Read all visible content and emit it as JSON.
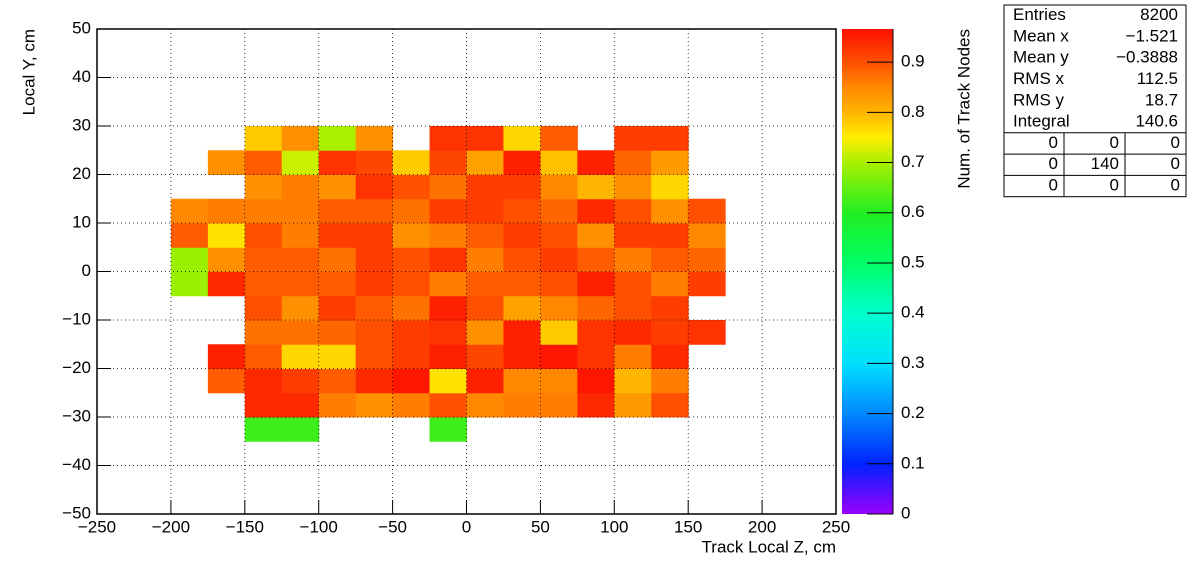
{
  "chart_data": {
    "type": "heatmap",
    "xlabel": "Track Local Z, cm",
    "ylabel": "Local Y, cm",
    "zlabel": "Num. of Track Nodes",
    "xlim": [
      -250,
      250
    ],
    "ylim": [
      -50,
      50
    ],
    "zlim": [
      0,
      0.966
    ],
    "xticks": [
      {
        "value": -250,
        "label": "−250"
      },
      {
        "value": -200,
        "label": "−200"
      },
      {
        "value": -150,
        "label": "−150"
      },
      {
        "value": -100,
        "label": "−100"
      },
      {
        "value": -50,
        "label": "−50"
      },
      0,
      50,
      100,
      150,
      200,
      250
    ],
    "yticks": [
      {
        "value": -50,
        "label": "−50"
      },
      {
        "value": -40,
        "label": "−40"
      },
      {
        "value": -30,
        "label": "−30"
      },
      {
        "value": -20,
        "label": "−20"
      },
      {
        "value": -10,
        "label": "−10"
      },
      0,
      10,
      20,
      30,
      40,
      50
    ],
    "zticks": [
      0,
      0.1,
      0.2,
      0.3,
      0.4,
      0.5,
      0.6,
      0.7,
      0.8,
      0.9
    ],
    "grid": true,
    "colorscale": [
      [
        0,
        "#9900ff"
      ],
      [
        0.1,
        "#0022ff"
      ],
      [
        0.2,
        "#0088ff"
      ],
      [
        0.3,
        "#00e0ff"
      ],
      [
        0.4,
        "#00ffcc"
      ],
      [
        0.5,
        "#00ff66"
      ],
      [
        0.6,
        "#22ee22"
      ],
      [
        0.7,
        "#a8f000"
      ],
      [
        0.75,
        "#ffee00"
      ],
      [
        0.8,
        "#ffb400"
      ],
      [
        0.85,
        "#ff8800"
      ],
      [
        0.9,
        "#ff5000"
      ],
      [
        0.966,
        "#ff1000"
      ]
    ],
    "xbins": [
      -200,
      -175,
      -150,
      -125,
      -100,
      -75,
      -50,
      -25,
      0,
      25,
      50,
      75,
      100,
      125,
      150,
      175
    ],
    "ybins": [
      -35,
      -30,
      -25,
      -20,
      -15,
      -10,
      -5,
      0,
      5,
      10,
      15,
      20,
      25,
      30
    ],
    "z": [
      [
        null,
        null,
        0.62,
        0.62,
        null,
        null,
        null,
        0.62,
        null,
        null,
        null,
        null,
        null,
        null,
        null
      ],
      [
        null,
        null,
        0.94,
        0.94,
        0.86,
        0.84,
        0.86,
        0.9,
        0.85,
        0.86,
        0.86,
        0.94,
        0.83,
        0.9,
        null
      ],
      [
        null,
        0.89,
        0.94,
        0.92,
        0.89,
        0.94,
        0.96,
        0.76,
        0.95,
        0.85,
        0.85,
        0.96,
        0.8,
        0.86,
        null
      ],
      [
        null,
        0.95,
        0.89,
        0.77,
        0.77,
        0.9,
        0.92,
        0.95,
        0.91,
        0.95,
        0.96,
        0.93,
        0.86,
        0.94,
        null
      ],
      [
        null,
        null,
        0.87,
        0.87,
        0.88,
        0.9,
        0.92,
        0.93,
        0.84,
        0.95,
        0.78,
        0.93,
        0.94,
        0.92,
        0.93
      ],
      [
        null,
        null,
        0.9,
        0.84,
        0.92,
        0.89,
        0.87,
        0.95,
        0.9,
        0.82,
        0.85,
        0.88,
        0.9,
        0.92,
        null
      ],
      [
        0.69,
        0.94,
        0.89,
        0.89,
        0.89,
        0.92,
        0.9,
        0.86,
        0.89,
        0.89,
        0.9,
        0.95,
        0.9,
        0.86,
        0.92
      ],
      [
        0.69,
        0.84,
        0.89,
        0.89,
        0.87,
        0.92,
        0.9,
        0.93,
        0.86,
        0.9,
        0.92,
        0.89,
        0.86,
        0.89,
        0.88
      ],
      [
        0.89,
        0.76,
        0.9,
        0.86,
        0.92,
        0.92,
        0.84,
        0.86,
        0.89,
        0.92,
        0.9,
        0.84,
        0.92,
        0.92,
        0.85
      ],
      [
        0.85,
        0.86,
        0.86,
        0.86,
        0.89,
        0.89,
        0.87,
        0.92,
        0.92,
        0.9,
        0.88,
        0.94,
        0.9,
        0.84,
        0.9
      ],
      [
        null,
        null,
        0.84,
        0.86,
        0.84,
        0.93,
        0.9,
        0.87,
        0.92,
        0.92,
        0.85,
        0.8,
        0.84,
        0.77,
        null
      ],
      [
        null,
        0.84,
        0.89,
        0.72,
        0.93,
        0.91,
        0.78,
        0.91,
        0.82,
        0.95,
        0.79,
        0.95,
        0.88,
        0.83,
        null
      ],
      [
        null,
        null,
        0.78,
        0.84,
        0.7,
        0.84,
        null,
        0.93,
        0.93,
        0.77,
        0.89,
        null,
        0.92,
        0.92,
        null
      ]
    ],
    "stats": {
      "rows": [
        [
          "Entries",
          "8200"
        ],
        [
          "Mean x",
          "−1.521"
        ],
        [
          "Mean y",
          "−0.3888"
        ],
        [
          "RMS x",
          "112.5"
        ],
        [
          "RMS y",
          "18.7"
        ],
        [
          "Integral",
          "140.6"
        ]
      ],
      "grid": [
        [
          "0",
          "0",
          "0"
        ],
        [
          "0",
          "140",
          "0"
        ],
        [
          "0",
          "0",
          "0"
        ]
      ]
    }
  }
}
